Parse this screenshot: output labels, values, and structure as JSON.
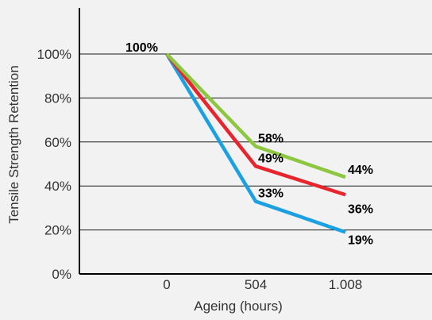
{
  "chart_data": {
    "type": "line",
    "title": "",
    "xlabel": "Ageing (hours)",
    "ylabel": "Tensile Strength Retention",
    "categories": [
      "0",
      "504",
      "1.008"
    ],
    "x": [
      0,
      504,
      1008
    ],
    "ylim": [
      0,
      100
    ],
    "yticks": [
      0,
      20,
      40,
      60,
      80,
      100
    ],
    "ytick_labels": [
      "0%",
      "20%",
      "40%",
      "60%",
      "80%",
      "100%"
    ],
    "grid": "horizontal",
    "legend": "none",
    "series": [
      {
        "color": "#8dc63f",
        "values": [
          100,
          58,
          44
        ],
        "labels": [
          "100%",
          "58%",
          "44%"
        ]
      },
      {
        "color": "#e8242c",
        "values": [
          100,
          49,
          36
        ],
        "labels": [
          "",
          "49%",
          "36%"
        ]
      },
      {
        "color": "#1ba1e2",
        "values": [
          100,
          33,
          19
        ],
        "labels": [
          "",
          "33%",
          "19%"
        ]
      }
    ]
  }
}
